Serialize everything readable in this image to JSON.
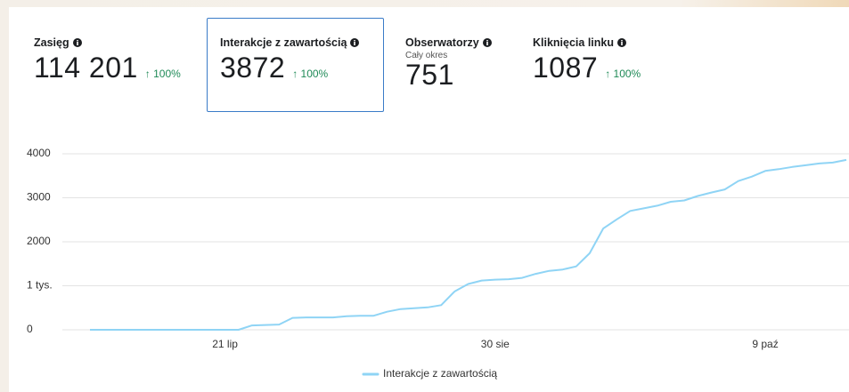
{
  "metrics": [
    {
      "label": "Zasięg",
      "value": "114 201",
      "change": "↑ 100%"
    },
    {
      "label": "Interakcje z zawartością",
      "value": "3872",
      "change": "↑ 100%"
    },
    {
      "label": "Obserwatorzy",
      "note": "Cały okres",
      "value": "751"
    },
    {
      "label": "Kliknięcia linku",
      "value": "1087",
      "change": "↑ 100%"
    }
  ],
  "chart_data": {
    "type": "line",
    "categories": [
      null,
      null,
      null,
      null,
      null,
      null,
      null,
      null,
      null,
      null,
      "21 lip",
      null,
      null,
      null,
      null,
      null,
      null,
      null,
      null,
      null,
      null,
      null,
      null,
      null,
      null,
      null,
      null,
      null,
      null,
      null,
      "30 sie",
      null,
      null,
      null,
      null,
      null,
      null,
      null,
      null,
      null,
      null,
      null,
      null,
      null,
      null,
      null,
      null,
      null,
      null,
      null,
      "9 paź",
      null,
      null,
      null,
      null,
      null,
      null
    ],
    "series": [
      {
        "name": "Interakcje z zawartością",
        "color": "#8fd4f5",
        "values": [
          0,
          0,
          0,
          0,
          0,
          0,
          0,
          0,
          0,
          0,
          0,
          0,
          100,
          110,
          120,
          270,
          280,
          280,
          280,
          310,
          320,
          320,
          410,
          470,
          490,
          510,
          560,
          870,
          1040,
          1120,
          1140,
          1150,
          1180,
          1270,
          1340,
          1370,
          1440,
          1740,
          2300,
          2510,
          2700,
          2760,
          2820,
          2910,
          2940,
          3040,
          3120,
          3190,
          3380,
          3480,
          3610,
          3650,
          3700,
          3740,
          3780,
          3800,
          3860
        ]
      }
    ],
    "ylim": [
      0,
      4000
    ],
    "yticks": [
      0,
      {
        "value": 1000,
        "label": "1 tys."
      },
      2000,
      3000,
      4000
    ],
    "grid": true
  }
}
